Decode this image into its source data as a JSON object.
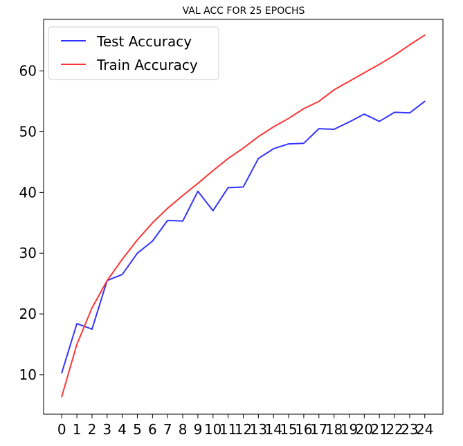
{
  "chart_data": {
    "type": "line",
    "title": "VAL ACC FOR 25 EPOCHS",
    "xlabel": "",
    "ylabel": "",
    "x": [
      0,
      1,
      2,
      3,
      4,
      5,
      6,
      7,
      8,
      9,
      10,
      11,
      12,
      13,
      14,
      15,
      16,
      17,
      18,
      19,
      20,
      21,
      22,
      23,
      24
    ],
    "x_tick_labels": [
      "0",
      "1",
      "2",
      "3",
      "4",
      "5",
      "6",
      "7",
      "8",
      "9",
      "10",
      "11",
      "12",
      "13",
      "14",
      "15",
      "16",
      "17",
      "18",
      "19",
      "20",
      "21",
      "22",
      "23",
      "24"
    ],
    "y_ticks": [
      10,
      20,
      30,
      40,
      50,
      60
    ],
    "ylim": [
      3.5,
      68.5
    ],
    "xlim": [
      -1.2,
      25.2
    ],
    "grid": false,
    "legend_position": "upper-left",
    "series": [
      {
        "name": "Test Accuracy",
        "color": "#3333ff",
        "values": [
          10.3,
          18.4,
          17.5,
          25.5,
          26.5,
          30.0,
          32.0,
          35.4,
          35.3,
          40.2,
          37.0,
          40.8,
          40.9,
          45.6,
          47.2,
          48.0,
          48.1,
          50.5,
          50.4,
          51.6,
          52.9,
          51.7,
          53.2,
          53.1,
          55.0
        ]
      },
      {
        "name": "Train Accuracy",
        "color": "#ff3333",
        "values": [
          6.4,
          15.0,
          21.0,
          25.5,
          29.0,
          32.2,
          35.0,
          37.4,
          39.5,
          41.5,
          43.6,
          45.6,
          47.3,
          49.2,
          50.8,
          52.2,
          53.8,
          55.0,
          56.9,
          58.3,
          59.7,
          61.1,
          62.6,
          64.3,
          65.9
        ]
      }
    ]
  }
}
